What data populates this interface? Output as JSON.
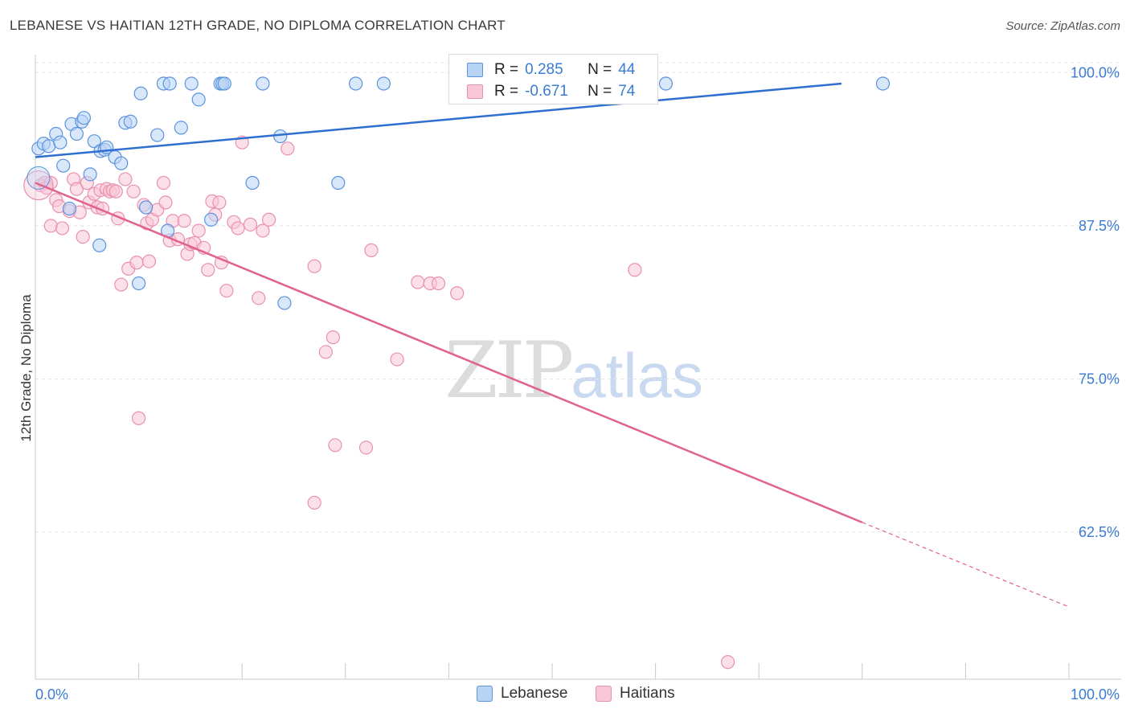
{
  "title": "LEBANESE VS HAITIAN 12TH GRADE, NO DIPLOMA CORRELATION CHART",
  "source": "Source: ZipAtlas.com",
  "watermark": {
    "zip": "ZIP",
    "atlas": "atlas"
  },
  "colors": {
    "lebanese_fill": "#b8d4f5",
    "lebanese_stroke": "#5b93dd",
    "lebanese_line": "#2f6fcf",
    "haitian_fill": "#f9c6d6",
    "haitian_stroke": "#e891ae",
    "haitian_line": "#e0628f",
    "tick_label": "#3a7bd5",
    "grid": "#e3e3e3"
  },
  "legend": {
    "rows": [
      {
        "r_label": "R =",
        "r_value": "0.285",
        "n_label": "N =",
        "n_value": "44"
      },
      {
        "r_label": "R =",
        "r_value": "-0.671",
        "n_label": "N =",
        "n_value": "74"
      }
    ]
  },
  "bottom_legend": [
    "Lebanese",
    "Haitians"
  ],
  "chart_data": {
    "type": "scatter",
    "title": "LEBANESE VS HAITIAN 12TH GRADE, NO DIPLOMA CORRELATION CHART",
    "xlabel": "",
    "ylabel": "12th Grade, No Diploma",
    "x_tick_labels": [
      "0.0%",
      "100.0%"
    ],
    "y_tick_labels": [
      "100.0%",
      "87.5%",
      "75.0%",
      "62.5%"
    ],
    "y_ticks": [
      100.0,
      87.5,
      75.0,
      62.5
    ],
    "xlim": [
      0,
      100
    ],
    "ylim": [
      50.5,
      101.2
    ],
    "grid": true,
    "legend_placement": "top-center",
    "series": [
      {
        "name": "Lebanese",
        "points": [
          [
            0.3,
            93.8
          ],
          [
            0.8,
            94.2
          ],
          [
            1.3,
            94.0
          ],
          [
            2.0,
            95.0
          ],
          [
            2.4,
            94.3
          ],
          [
            2.7,
            92.4
          ],
          [
            3.3,
            88.9
          ],
          [
            3.5,
            95.8
          ],
          [
            4.0,
            95.0
          ],
          [
            4.5,
            96.0
          ],
          [
            4.7,
            96.3
          ],
          [
            5.7,
            94.4
          ],
          [
            5.3,
            91.7
          ],
          [
            6.3,
            93.6
          ],
          [
            6.7,
            93.7
          ],
          [
            6.9,
            93.9
          ],
          [
            7.7,
            93.1
          ],
          [
            8.3,
            92.6
          ],
          [
            8.7,
            95.9
          ],
          [
            9.2,
            96.0
          ],
          [
            10.0,
            82.8
          ],
          [
            10.2,
            98.3
          ],
          [
            10.7,
            89.0
          ],
          [
            11.8,
            94.9
          ],
          [
            12.4,
            99.1
          ],
          [
            13.0,
            99.1
          ],
          [
            12.8,
            87.1
          ],
          [
            14.1,
            95.5
          ],
          [
            15.1,
            99.1
          ],
          [
            15.8,
            97.8
          ],
          [
            17.0,
            88.0
          ],
          [
            17.9,
            99.1
          ],
          [
            18.1,
            99.1
          ],
          [
            18.3,
            99.1
          ],
          [
            21.0,
            91.0
          ],
          [
            22.0,
            99.1
          ],
          [
            23.7,
            94.8
          ],
          [
            24.1,
            81.2
          ],
          [
            29.3,
            91.0
          ],
          [
            31.0,
            99.1
          ],
          [
            33.7,
            99.1
          ],
          [
            6.2,
            85.9
          ],
          [
            61.0,
            99.1
          ],
          [
            82.0,
            99.1
          ]
        ],
        "trend": {
          "x0": 0,
          "y0": 93.1,
          "x1": 78.0,
          "y1": 99.1
        }
      },
      {
        "name": "Haitians",
        "points": [
          [
            0.5,
            90.8
          ],
          [
            0.9,
            91.0
          ],
          [
            1.1,
            90.6
          ],
          [
            1.5,
            91.0
          ],
          [
            1.5,
            87.5
          ],
          [
            2.0,
            89.6
          ],
          [
            2.3,
            89.1
          ],
          [
            2.6,
            87.3
          ],
          [
            3.3,
            88.7
          ],
          [
            3.7,
            91.3
          ],
          [
            4.0,
            90.5
          ],
          [
            4.3,
            88.6
          ],
          [
            4.6,
            86.6
          ],
          [
            5.0,
            91.0
          ],
          [
            5.2,
            89.4
          ],
          [
            5.7,
            90.1
          ],
          [
            6.0,
            89.0
          ],
          [
            6.3,
            90.4
          ],
          [
            6.5,
            88.9
          ],
          [
            6.9,
            90.5
          ],
          [
            7.2,
            90.3
          ],
          [
            7.5,
            90.4
          ],
          [
            7.8,
            90.3
          ],
          [
            8.0,
            88.1
          ],
          [
            8.3,
            82.7
          ],
          [
            8.7,
            91.3
          ],
          [
            9.0,
            84.0
          ],
          [
            9.5,
            90.3
          ],
          [
            9.8,
            84.5
          ],
          [
            10.0,
            71.8
          ],
          [
            10.5,
            89.2
          ],
          [
            10.8,
            87.7
          ],
          [
            11.0,
            84.6
          ],
          [
            11.3,
            88.0
          ],
          [
            11.8,
            88.8
          ],
          [
            12.4,
            91.0
          ],
          [
            12.6,
            89.4
          ],
          [
            13.0,
            86.3
          ],
          [
            13.3,
            87.9
          ],
          [
            13.8,
            86.4
          ],
          [
            14.4,
            87.9
          ],
          [
            14.7,
            85.2
          ],
          [
            15.0,
            86.0
          ],
          [
            15.4,
            86.1
          ],
          [
            15.8,
            87.1
          ],
          [
            16.3,
            85.7
          ],
          [
            16.7,
            83.9
          ],
          [
            17.1,
            89.5
          ],
          [
            17.4,
            88.4
          ],
          [
            17.8,
            89.4
          ],
          [
            18.0,
            84.5
          ],
          [
            18.5,
            82.2
          ],
          [
            19.2,
            87.8
          ],
          [
            19.6,
            87.3
          ],
          [
            20.0,
            94.3
          ],
          [
            20.8,
            87.6
          ],
          [
            21.6,
            81.6
          ],
          [
            22.0,
            87.1
          ],
          [
            22.6,
            88.0
          ],
          [
            24.4,
            93.8
          ],
          [
            27.0,
            84.2
          ],
          [
            28.1,
            77.2
          ],
          [
            28.8,
            78.4
          ],
          [
            29.0,
            69.6
          ],
          [
            27.0,
            64.9
          ],
          [
            32.0,
            69.4
          ],
          [
            32.5,
            85.5
          ],
          [
            35.0,
            76.6
          ],
          [
            37.0,
            82.9
          ],
          [
            38.2,
            82.8
          ],
          [
            39.0,
            82.8
          ],
          [
            40.8,
            82.0
          ],
          [
            58.0,
            83.9
          ],
          [
            67.0,
            51.9
          ]
        ],
        "trend": {
          "x0": 0,
          "y0": 91.0,
          "x1": 80.0,
          "y1": 63.3
        },
        "trend_dashed_to": {
          "x": 100.0,
          "y": 56.4
        }
      }
    ]
  }
}
